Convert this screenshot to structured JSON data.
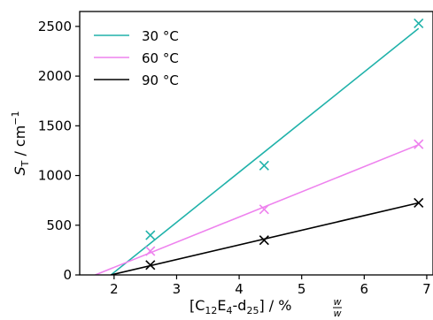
{
  "chart_data": {
    "type": "scatter",
    "xlim": [
      1.45,
      7.1
    ],
    "ylim": [
      0,
      2650
    ],
    "x_ticks": [
      2,
      3,
      4,
      5,
      6,
      7
    ],
    "y_ticks": [
      0,
      500,
      1000,
      1500,
      2000,
      2500
    ],
    "grid": false,
    "legend": "top-left",
    "xlabel": {
      "main": "[C",
      "s1": "12",
      "m2": "E",
      "s2": "4",
      "m3": "-d",
      "s3": "25",
      "m4": "] / % ",
      "frac_num": "w",
      "frac_den": "w"
    },
    "ylabel": {
      "main": "S",
      "sub": "T",
      "unit": " / cm",
      "sup": "−1"
    },
    "series": [
      {
        "name": "30 °C",
        "color": "#20b2aa",
        "x": [
          2.58,
          4.4,
          6.87
        ],
        "y": [
          400,
          1100,
          2530
        ],
        "fit": [
          [
            1.95,
            0
          ],
          [
            6.87,
            2480
          ]
        ]
      },
      {
        "name": "60 °C",
        "color": "#ee82ee",
        "x": [
          2.58,
          4.4,
          6.87
        ],
        "y": [
          240,
          660,
          1315
        ],
        "fit": [
          [
            1.7,
            0
          ],
          [
            6.87,
            1310
          ]
        ]
      },
      {
        "name": "90 °C",
        "color": "#000000",
        "x": [
          2.58,
          4.4,
          6.87
        ],
        "y": [
          100,
          350,
          725
        ],
        "fit": [
          [
            1.95,
            0
          ],
          [
            6.87,
            725
          ]
        ]
      }
    ]
  }
}
